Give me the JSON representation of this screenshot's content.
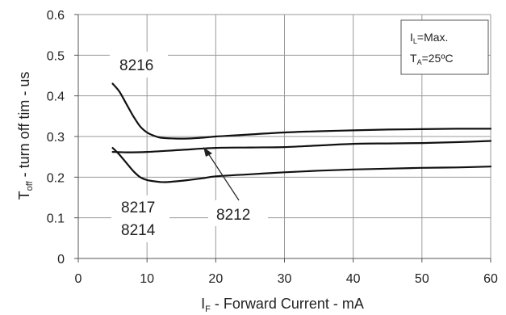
{
  "chart_data": {
    "type": "line",
    "xlabel": {
      "main": "I",
      "sub": "F",
      "rest": " - Forward Current  - mA"
    },
    "ylabel": {
      "main": "T",
      "sub": "off",
      "rest": " - turn off tim - us"
    },
    "xlim": [
      0,
      60
    ],
    "ylim": [
      0,
      0.6
    ],
    "x_ticks": [
      "0",
      "10",
      "20",
      "30",
      "40",
      "50",
      "60"
    ],
    "y_ticks": [
      "0",
      "0.1",
      "0.2",
      "0.3",
      "0.4",
      "0.5",
      "0.6"
    ],
    "grid": true,
    "conditions": [
      {
        "main": "I",
        "sub": "L",
        "rest": "=Max."
      },
      {
        "main": "T",
        "sub": "A",
        "rest": "=25ºC"
      }
    ],
    "series": [
      {
        "name": "8216",
        "x": [
          5,
          6,
          7,
          8,
          9,
          10,
          11,
          12,
          14,
          16,
          18,
          20,
          22,
          25,
          30,
          35,
          40,
          45,
          50,
          55,
          60
        ],
        "y": [
          0.43,
          0.41,
          0.38,
          0.35,
          0.325,
          0.31,
          0.302,
          0.297,
          0.295,
          0.295,
          0.297,
          0.3,
          0.302,
          0.305,
          0.31,
          0.313,
          0.315,
          0.317,
          0.318,
          0.319,
          0.319
        ]
      },
      {
        "name": "8212",
        "x": [
          5,
          7,
          10,
          15,
          20,
          25,
          30,
          35,
          40,
          45,
          50,
          55,
          60
        ],
        "y": [
          0.262,
          0.261,
          0.262,
          0.267,
          0.272,
          0.273,
          0.274,
          0.278,
          0.282,
          0.283,
          0.284,
          0.286,
          0.289
        ]
      },
      {
        "name": "8217 / 8214",
        "x": [
          5,
          6,
          7,
          8,
          9,
          10,
          11,
          12,
          13,
          15,
          18,
          20,
          25,
          30,
          35,
          40,
          45,
          50,
          55,
          60
        ],
        "y": [
          0.272,
          0.255,
          0.235,
          0.215,
          0.2,
          0.193,
          0.19,
          0.188,
          0.188,
          0.191,
          0.197,
          0.202,
          0.207,
          0.212,
          0.216,
          0.219,
          0.221,
          0.223,
          0.224,
          0.226
        ]
      }
    ],
    "labels": [
      "8216",
      "8217",
      "8214",
      "8212"
    ]
  }
}
